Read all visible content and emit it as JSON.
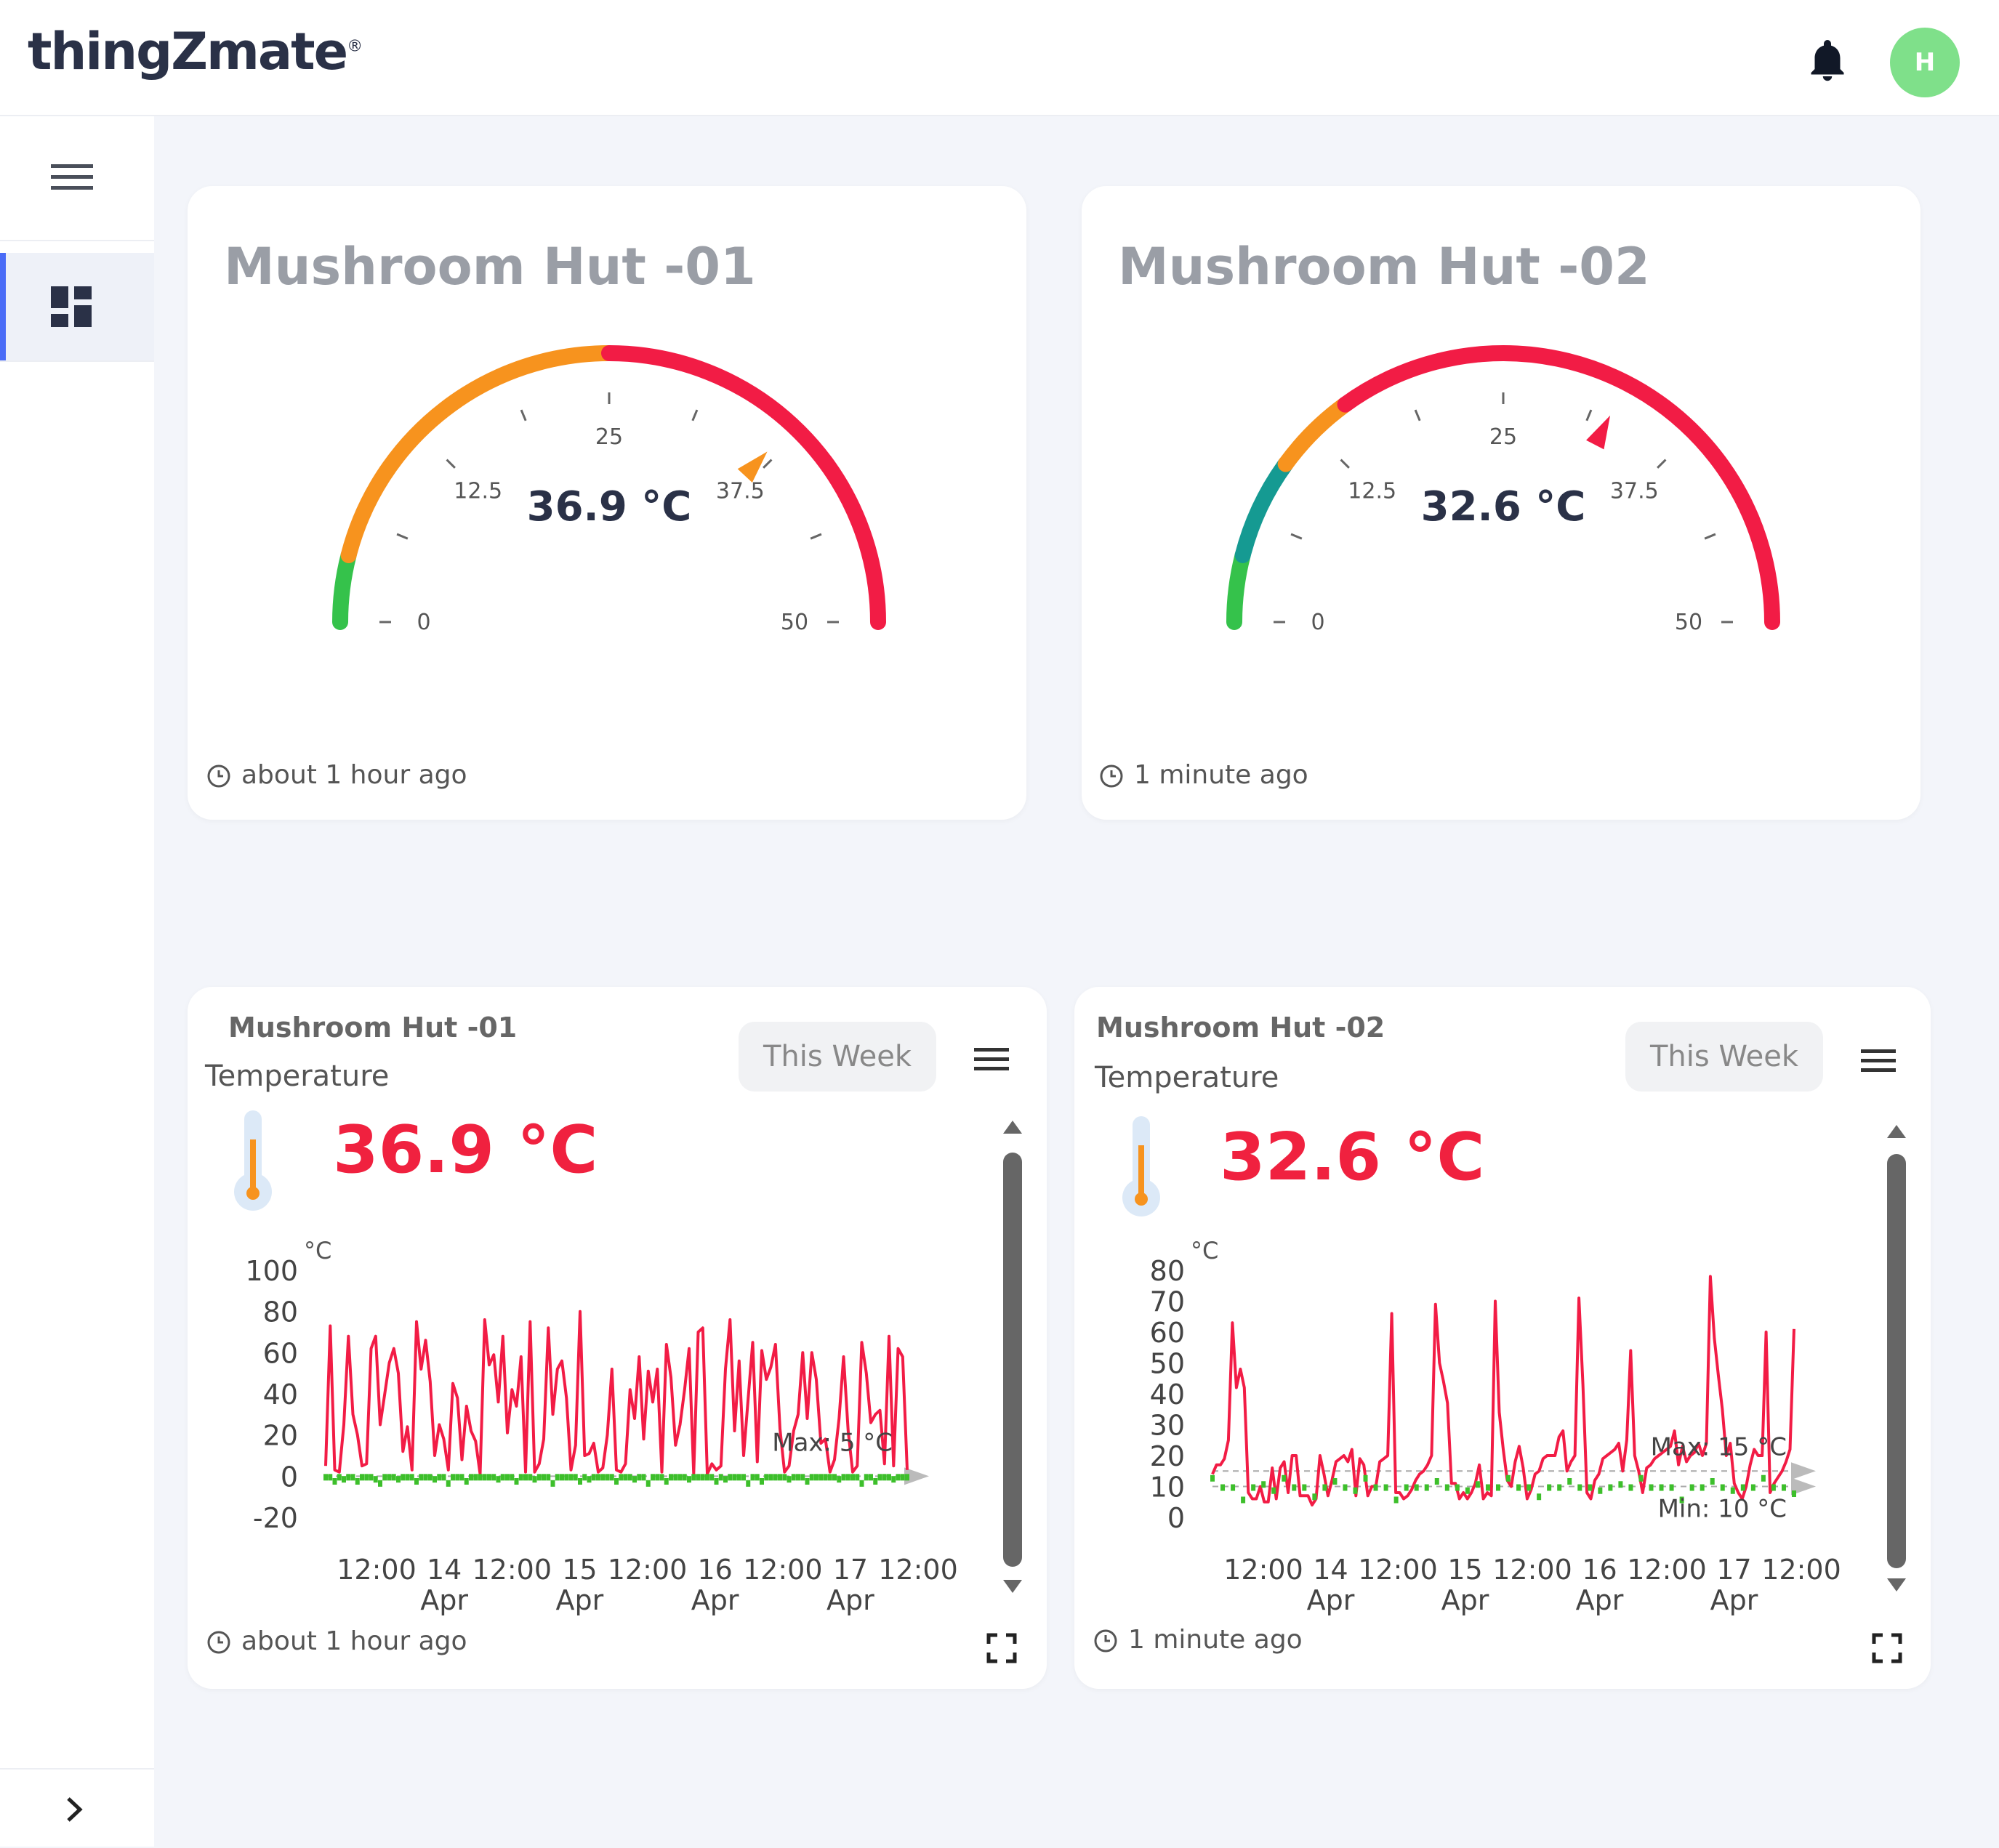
{
  "brand": {
    "logo_text": "thingZmate",
    "registered_mark": "®"
  },
  "header": {
    "avatar_initial": "H",
    "bell_icon": "bell-icon"
  },
  "sidebar": {
    "menu_icon": "hamburger-icon",
    "dashboard_icon": "dashboard-icon",
    "expand_icon": "chevron-right-icon",
    "accent_color": "#4a6cf7"
  },
  "gauges": [
    {
      "title": "Mushroom Hut -01",
      "value": 36.9,
      "value_text": "36.9 °C",
      "min": 0,
      "max": 50,
      "ticks": [
        "0",
        "12.5",
        "25",
        "37.5",
        "50"
      ],
      "updated": "about 1 hour ago",
      "pointer_color": "#f7931e",
      "bands": [
        {
          "from": 0,
          "to": 4,
          "color": "#35c24b"
        },
        {
          "from": 4,
          "to": 25,
          "color": "#f7931e"
        },
        {
          "from": 25,
          "to": 50,
          "color": "#f21c45"
        }
      ]
    },
    {
      "title": "Mushroom Hut -02",
      "value": 32.6,
      "value_text": "32.6 °C",
      "min": 0,
      "max": 50,
      "ticks": [
        "0",
        "12.5",
        "25",
        "37.5",
        "50"
      ],
      "updated": "1 minute ago",
      "pointer_color": "#f21c45",
      "bands": [
        {
          "from": 0,
          "to": 4,
          "color": "#35c24b"
        },
        {
          "from": 4,
          "to": 10,
          "color": "#159a92"
        },
        {
          "from": 10,
          "to": 15,
          "color": "#f7931e"
        },
        {
          "from": 15,
          "to": 50,
          "color": "#f21c45"
        }
      ]
    }
  ],
  "charts": [
    {
      "title": "Mushroom Hut -01",
      "subtitle": "Temperature",
      "range_label": "This Week",
      "current_value": "36.9 °C",
      "updated": "about 1 hour ago",
      "chart_data": {
        "type": "line",
        "unit": "°C",
        "ylim": [
          -20,
          100
        ],
        "yticks": [
          "100",
          "80",
          "60",
          "40",
          "20",
          "0",
          "-20"
        ],
        "xticks": [
          {
            "top": "12:00",
            "bottom": ""
          },
          {
            "top": "14",
            "bottom": "Apr"
          },
          {
            "top": "12:00",
            "bottom": ""
          },
          {
            "top": "15",
            "bottom": "Apr"
          },
          {
            "top": "12:00",
            "bottom": ""
          },
          {
            "top": "16",
            "bottom": "Apr"
          },
          {
            "top": "12:00",
            "bottom": ""
          },
          {
            "top": "17",
            "bottom": "Apr"
          },
          {
            "top": "12:00",
            "bottom": ""
          }
        ],
        "annotations": [
          "Max: 5 °C"
        ],
        "threshold_line": 0,
        "series": [
          {
            "color": "#f21c45",
            "values": [
              5,
              73,
              3,
              2,
              25,
              68,
              30,
              20,
              5,
              6,
              62,
              68,
              25,
              40,
              55,
              62,
              50,
              12,
              24,
              3,
              75,
              52,
              66,
              46,
              10,
              25,
              18,
              3,
              45,
              38,
              8,
              34,
              22,
              17,
              1,
              76,
              54,
              59,
              36,
              68,
              21,
              42,
              34,
              58,
              2,
              75,
              2,
              6,
              18,
              72,
              30,
              52,
              56,
              38,
              3,
              15,
              80,
              10,
              11,
              16,
              2,
              4,
              20,
              52,
              3,
              2,
              6,
              42,
              28,
              58,
              18,
              51,
              36,
              52,
              2,
              64,
              48,
              15,
              25,
              42,
              62,
              1,
              70,
              72,
              1,
              6,
              3,
              5,
              52,
              76,
              22,
              56,
              10,
              38,
              65,
              7,
              61,
              47,
              53,
              64,
              23,
              2,
              5,
              22,
              30,
              60,
              28,
              60,
              47,
              16,
              18,
              2,
              8,
              28,
              58,
              22,
              2,
              5,
              65,
              50,
              26,
              30,
              32,
              6,
              68,
              5,
              62,
              58,
              3
            ]
          },
          {
            "color": "#3dbf2b",
            "values": [
              0,
              0,
              -2,
              0,
              -1,
              0,
              0,
              -2,
              0,
              0,
              0,
              -1,
              -3,
              0,
              0,
              0,
              -1,
              0,
              0,
              0,
              -2,
              0,
              0,
              0,
              -1,
              0,
              0,
              -3,
              0,
              0,
              0,
              -2,
              0,
              0,
              0,
              0,
              0,
              0,
              -1,
              0,
              0,
              0,
              -2,
              0,
              0,
              0,
              -1,
              0,
              0,
              0,
              -3,
              0,
              0,
              0,
              0,
              0,
              -2,
              0,
              -1,
              0,
              0,
              0,
              0,
              0,
              -2,
              0,
              0,
              0,
              -1,
              0,
              0,
              -3,
              0,
              0,
              0,
              -2,
              0,
              0,
              0,
              0,
              -1,
              0,
              0,
              0,
              0,
              0,
              -2,
              0,
              -1,
              0,
              0,
              0,
              0,
              -3,
              0,
              0,
              -2,
              0,
              0,
              0,
              0,
              0,
              -1,
              0,
              0,
              0,
              -2,
              0,
              0,
              0,
              0,
              0,
              0,
              -1,
              0,
              0,
              0,
              0,
              -3,
              0,
              0,
              -2,
              0,
              0,
              0,
              -1,
              0,
              0,
              0
            ]
          }
        ]
      }
    },
    {
      "title": "Mushroom Hut -02",
      "subtitle": "Temperature",
      "range_label": "This Week",
      "current_value": "32.6 °C",
      "updated": "1 minute ago",
      "chart_data": {
        "type": "line",
        "unit": "°C",
        "ylim": [
          0,
          80
        ],
        "yticks": [
          "80",
          "70",
          "60",
          "50",
          "40",
          "30",
          "20",
          "10",
          "0"
        ],
        "xticks": [
          {
            "top": "12:00",
            "bottom": ""
          },
          {
            "top": "14",
            "bottom": "Apr"
          },
          {
            "top": "12:00",
            "bottom": ""
          },
          {
            "top": "15",
            "bottom": "Apr"
          },
          {
            "top": "12:00",
            "bottom": ""
          },
          {
            "top": "16",
            "bottom": "Apr"
          },
          {
            "top": "12:00",
            "bottom": ""
          },
          {
            "top": "17",
            "bottom": "Apr"
          },
          {
            "top": "12:00",
            "bottom": ""
          }
        ],
        "annotations": [
          "Max: 15 °C",
          "Min: 10 °C"
        ],
        "threshold_lines": [
          15,
          10
        ],
        "series": [
          {
            "color": "#f21c45",
            "values": [
              14,
              17,
              17,
              19,
              25,
              63,
              42,
              48,
              42,
              8,
              6,
              6,
              10,
              5,
              5,
              16,
              6,
              16,
              18,
              8,
              20,
              20,
              7,
              7,
              7,
              4,
              6,
              20,
              14,
              7,
              12,
              18,
              19,
              20,
              18,
              22,
              7,
              19,
              17,
              7,
              10,
              10,
              18,
              19,
              20,
              66,
              8,
              8,
              6,
              7,
              9,
              12,
              14,
              15,
              17,
              20,
              69,
              50,
              44,
              37,
              11,
              11,
              6,
              8,
              6,
              8,
              11,
              17,
              6,
              8,
              7,
              70,
              34,
              22,
              12,
              10,
              18,
              23,
              16,
              6,
              9,
              14,
              15,
              19,
              20,
              20,
              20,
              26,
              28,
              15,
              18,
              20,
              71,
              43,
              8,
              6,
              12,
              14,
              19,
              20,
              21,
              22,
              24,
              15,
              25,
              54,
              20,
              15,
              8,
              16,
              17,
              19,
              20,
              21,
              22,
              23,
              28,
              17,
              23,
              18,
              20,
              21,
              24,
              20,
              24,
              78,
              58,
              46,
              35,
              20,
              24,
              11,
              8,
              6,
              10,
              17,
              22,
              20,
              20,
              60,
              8,
              11,
              13,
              15,
              18,
              22,
              61
            ]
          },
          {
            "color": "#3dbf2b",
            "values": [
              13,
              10,
              10,
              6,
              10,
              11,
              9,
              13,
              10,
              10,
              7,
              10,
              12,
              10,
              9,
              13,
              10,
              10,
              6,
              10,
              10,
              10,
              12,
              10,
              10,
              9,
              11,
              10,
              10,
              13,
              10,
              10,
              7,
              10,
              10,
              12,
              10,
              10,
              9,
              10,
              11,
              10,
              13,
              10,
              10,
              10,
              6,
              10,
              10,
              12,
              10,
              9,
              10,
              10,
              13,
              10,
              10,
              8
            ]
          }
        ]
      }
    }
  ]
}
